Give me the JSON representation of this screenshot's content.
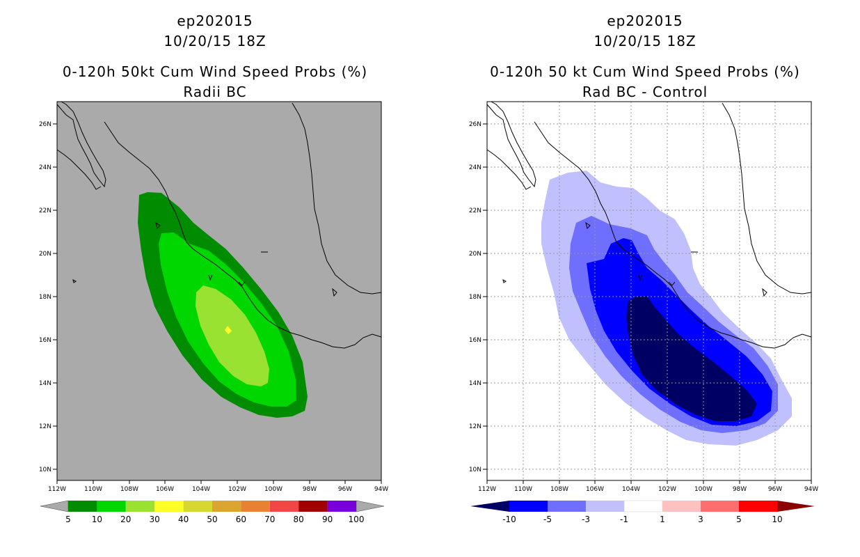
{
  "left": {
    "title_line1": "ep202015",
    "title_line2": "10/20/15 18Z",
    "title_line3": "0-120h 50kt Cum Wind Speed Probs (%)",
    "title_line4": "Radii BC",
    "lat_labels": [
      "26N",
      "24N",
      "22N",
      "20N",
      "18N",
      "16N",
      "14N",
      "12N",
      "10N"
    ],
    "lon_labels": [
      "112W",
      "110W",
      "108W",
      "106W",
      "104W",
      "102W",
      "100W",
      "98W",
      "96W",
      "94W"
    ],
    "colorbar_labels": [
      "5",
      "10",
      "20",
      "30",
      "40",
      "50",
      "60",
      "70",
      "80",
      "90",
      "100"
    ],
    "colorbar_colors": [
      "#008c00",
      "#00d600",
      "#9ae232",
      "#ffff28",
      "#d7d732",
      "#dca532",
      "#e88232",
      "#f04646",
      "#a00000",
      "#7800dc"
    ]
  },
  "right": {
    "title_line1": "ep202015",
    "title_line2": "10/20/15 18Z",
    "title_line3": "0-120h 50 kt Cum Wind Speed Probs (%)",
    "title_line4": "Rad BC - Control",
    "lat_labels": [
      "26N",
      "24N",
      "22N",
      "20N",
      "18N",
      "16N",
      "14N",
      "12N",
      "10N"
    ],
    "lon_labels": [
      "112W",
      "110W",
      "108W",
      "106W",
      "104W",
      "102W",
      "100W",
      "98W",
      "96W",
      "94W"
    ],
    "colorbar_labels": [
      "-10",
      "-5",
      "-3",
      "-1",
      "1",
      "3",
      "5",
      "10"
    ],
    "colorbar_colors": [
      "#000064",
      "#0000ff",
      "#6e6eff",
      "#c0c0ff",
      "#ffffff",
      "#ffc0c0",
      "#ff6e6e",
      "#ff0000",
      "#8c0000"
    ]
  }
}
